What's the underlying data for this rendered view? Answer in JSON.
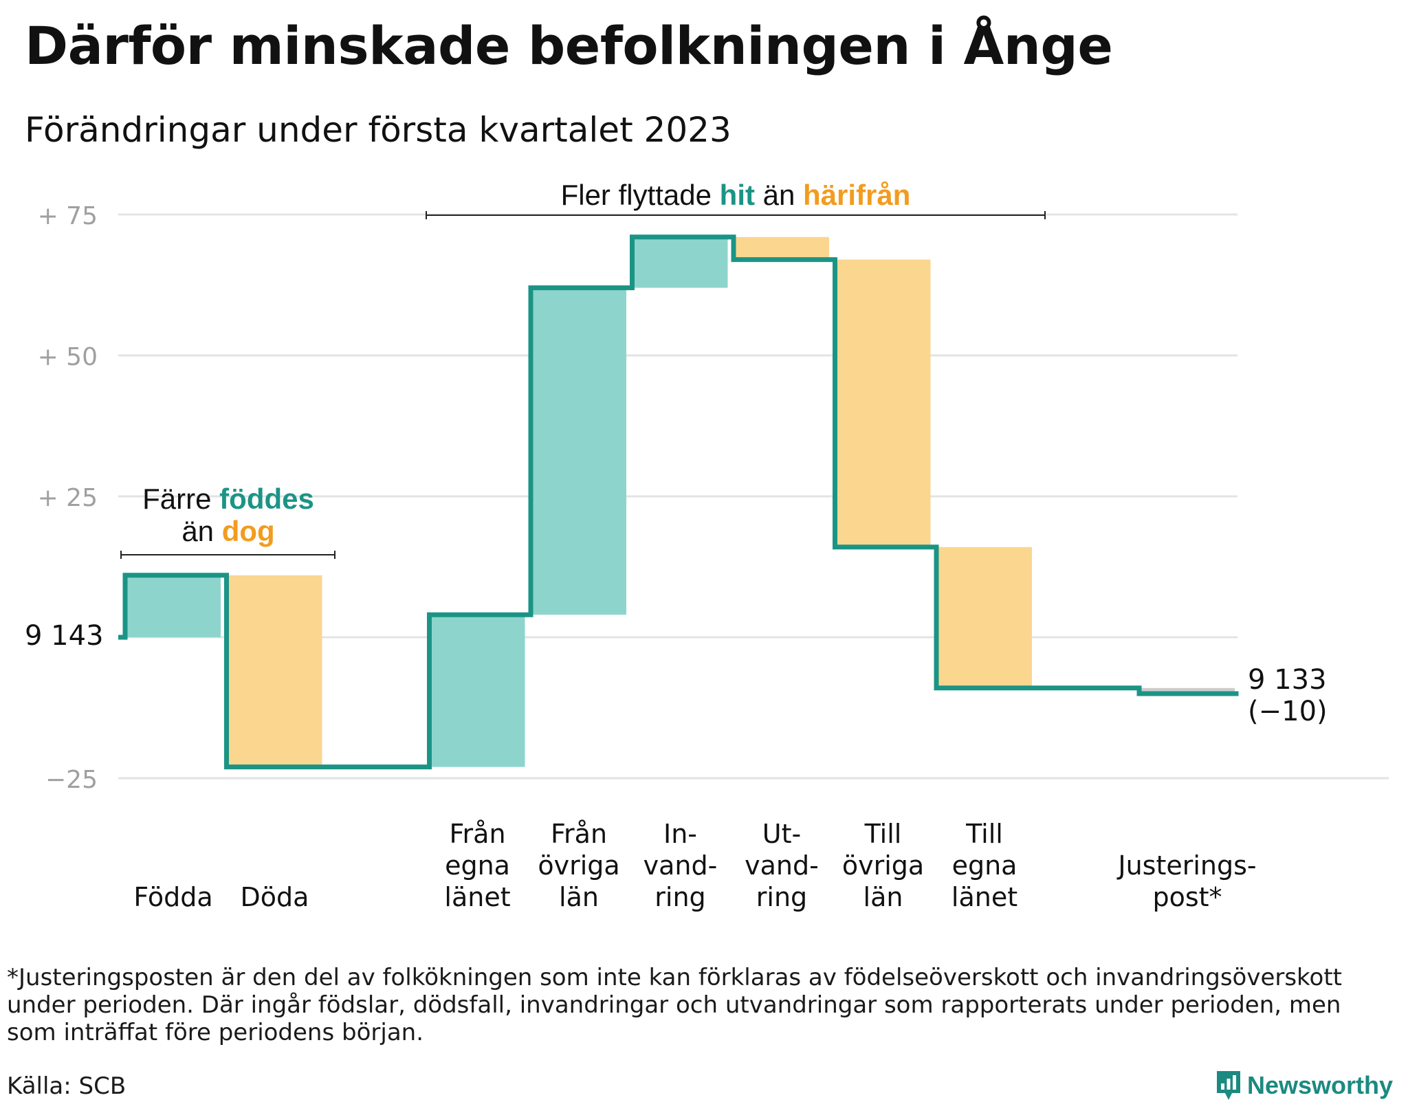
{
  "title": "Därför minskade befolkningen i Ånge",
  "subtitle": "Förändringar under första kvartalet 2023",
  "colors": {
    "increase_fill": "#8dd5cc",
    "decrease_fill": "#fbd68f",
    "adjustment_fill": "#cccccc",
    "line": "#1b9486",
    "teal_text": "#1b9486",
    "orange_text": "#f29c1e",
    "grid": "#e3e3e3",
    "tick_text": "#a0a0a0"
  },
  "annotations": {
    "births_deaths": {
      "line1_a": "Färre ",
      "line1_b": "föddes",
      "line2_a": "än ",
      "line2_b": "dog"
    },
    "migration": {
      "part_a": "Fler flyttade ",
      "part_b": "hit",
      "part_c": " än ",
      "part_d": "härifrån"
    }
  },
  "chart_data": {
    "type": "waterfall",
    "baseline_label": "9 143",
    "end_label_line1": "9 133",
    "end_label_line2": "(−10)",
    "y_ticks": [
      {
        "value": 75,
        "label": "+ 75"
      },
      {
        "value": 50,
        "label": "+ 50"
      },
      {
        "value": 25,
        "label": "+ 25"
      },
      {
        "value": 0,
        "label": ""
      },
      {
        "value": -25,
        "label": "−25"
      }
    ],
    "ylim": [
      -25,
      75
    ],
    "steps": [
      {
        "category": [
          "Födda"
        ],
        "value": 11
      },
      {
        "category": [
          "Döda"
        ],
        "value": -34
      },
      {
        "category": [
          ""
        ],
        "value": 0
      },
      {
        "category": [
          "Från",
          "egna",
          "länet"
        ],
        "value": 27
      },
      {
        "category": [
          "Från",
          "övriga",
          "län"
        ],
        "value": 58
      },
      {
        "category": [
          "In-",
          "vand-",
          "ring"
        ],
        "value": 9
      },
      {
        "category": [
          "Ut-",
          "vand-",
          "ring"
        ],
        "value": -4
      },
      {
        "category": [
          "Till",
          "övriga",
          "län"
        ],
        "value": -51
      },
      {
        "category": [
          "Till",
          "egna",
          "länet"
        ],
        "value": -25
      },
      {
        "category": [
          ""
        ],
        "value": 0
      },
      {
        "category": [
          "Justerings-",
          "post*"
        ],
        "value": -1
      }
    ]
  },
  "footnote": [
    "*Justeringsposten är den del av folkökningen som inte kan förklaras av födelseöverskott och invandringsöverskott",
    "under perioden. Där ingår födslar, dödsfall, invandringar och utvandringar som rapporterats under perioden, men",
    "som inträffat före periodens början."
  ],
  "source": "Källa: SCB",
  "brand": {
    "name": "Newsworthy",
    "icon": "newsworthy-logo-icon"
  }
}
